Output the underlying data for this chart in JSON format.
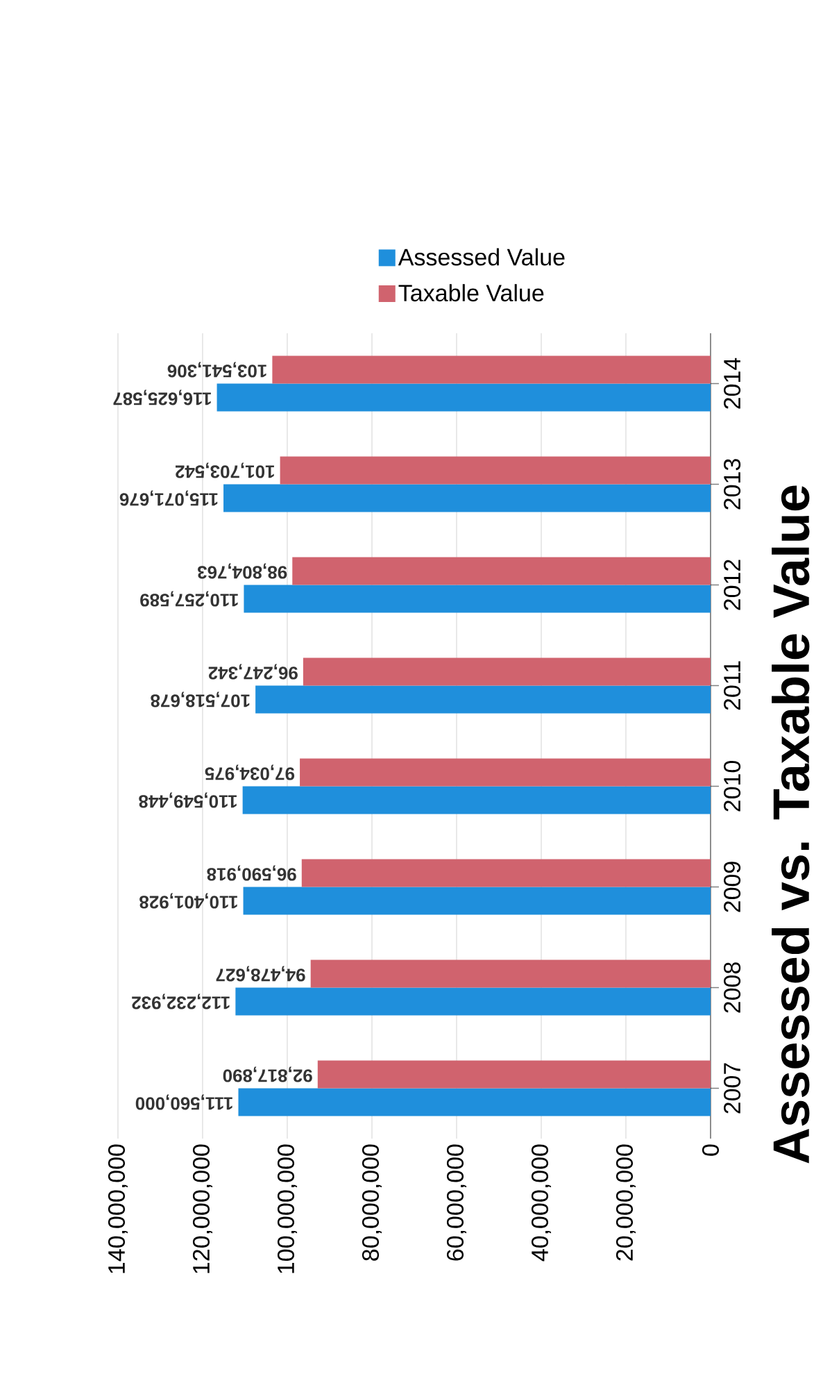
{
  "chart_data": {
    "type": "bar",
    "orientation": "horizontal",
    "title": "Assessed vs. Taxable Value",
    "categories": [
      "2014",
      "2013",
      "2012",
      "2011",
      "2010",
      "2009",
      "2008",
      "2007"
    ],
    "series": [
      {
        "name": "Assessed Value",
        "color": "#1f8fdc",
        "values": [
          116625587,
          115071676,
          110257589,
          107518678,
          110549448,
          110401928,
          112232932,
          111560000
        ],
        "value_labels": [
          "116,625,587",
          "115,071,676",
          "110,257,589",
          "107,518,678",
          "110,549,448",
          "110,401,928",
          "112,232,932",
          "111,560,000"
        ]
      },
      {
        "name": "Taxable Value",
        "color": "#d0636e",
        "values": [
          103541306,
          101703542,
          98804763,
          96247342,
          97034975,
          96590918,
          94478627,
          92817890
        ],
        "value_labels": [
          "103,541,306",
          "101,703,542",
          "98,804,763",
          "96,247,342",
          "97,034,975",
          "96,590,918",
          "94,478,627",
          "92,817,890"
        ]
      }
    ],
    "xlim": [
      140000000,
      0
    ],
    "xticks": [
      {
        "value": 0,
        "label": "0"
      },
      {
        "value": 20000000,
        "label": "20,000,000"
      },
      {
        "value": 40000000,
        "label": "40,000,000"
      },
      {
        "value": 60000000,
        "label": "60,000,000"
      },
      {
        "value": 80000000,
        "label": "80,000,000"
      },
      {
        "value": 100000000,
        "label": "100,000,000"
      },
      {
        "value": 120000000,
        "label": "120,000,000"
      },
      {
        "value": 140000000,
        "label": "140,000,000"
      }
    ],
    "grid": "x",
    "legend": "top"
  }
}
